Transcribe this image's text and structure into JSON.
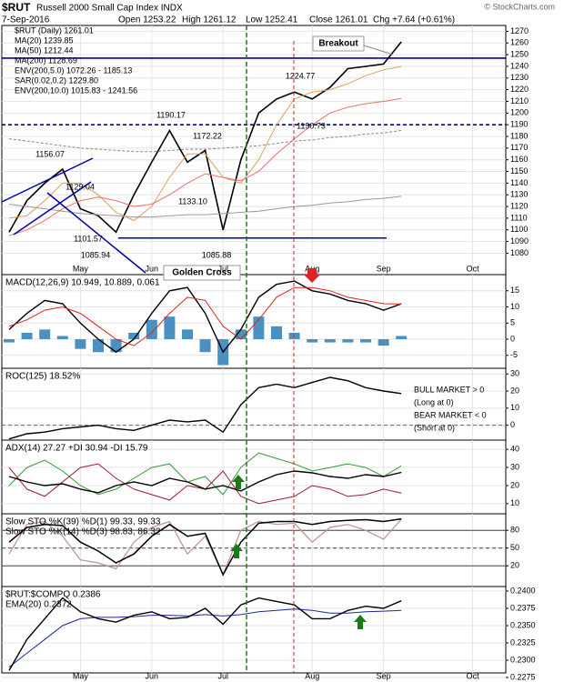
{
  "chart_data": {
    "type": "stock-panels",
    "title": "$RUT",
    "subtitle": "Russell 2000 Small Cap Index INDX",
    "date": "7-Sep-2016",
    "quote": [
      "Open 1253.22",
      "High 1261.12",
      "Low 1252.41",
      "Close 1261.01",
      "Chg +7.64 (+0.61%)"
    ],
    "watermark": "© StockCharts.com",
    "categories": [
      null,
      null,
      null,
      null,
      "May",
      null,
      null,
      null,
      "Jun",
      null,
      null,
      null,
      "Jul",
      null,
      null,
      null,
      null,
      "Aug",
      null,
      null,
      null,
      "Sep",
      null,
      null,
      null,
      null,
      "Oct",
      null
    ],
    "panels": [
      {
        "type": "price",
        "ylim": [
          1071,
          1275
        ],
        "grid": true,
        "yticks": [
          1080,
          1090,
          1100,
          1110,
          1120,
          1130,
          1140,
          1150,
          1160,
          1170,
          1180,
          1190,
          1200,
          1210,
          1220,
          1230,
          1240,
          1250,
          1260,
          1270
        ],
        "series": [
          {
            "name": "$RUT (Daily) 1261.01",
            "color": "#000000",
            "width": 1.6,
            "values": [
              1098,
              1125,
              1140,
              1152,
              1118,
              1112,
              1098,
              1130,
              1158,
              1185,
              1158,
              1168,
              1100,
              1160,
              1200,
              1212,
              1218,
              1212,
              1222,
              1238,
              1240,
              1242,
              1261.01
            ]
          },
          {
            "name": "MA(20) 1239.85",
            "color": "#d9a05b",
            "width": 1,
            "values": [
              1110,
              1112,
              1125,
              1140,
              1140,
              1130,
              1115,
              1108,
              1120,
              1145,
              1165,
              1165,
              1145,
              1140,
              1160,
              1190,
              1212,
              1218,
              1220,
              1225,
              1232,
              1237,
              1239.85
            ]
          },
          {
            "name": "MA(50) 1212.44",
            "color": "#e8706b",
            "width": 1,
            "values": [
              1095,
              1100,
              1108,
              1118,
              1125,
              1128,
              1125,
              1120,
              1122,
              1130,
              1140,
              1148,
              1145,
              1142,
              1150,
              1165,
              1178,
              1190,
              1200,
              1205,
              1208,
              1210,
              1212.44
            ]
          },
          {
            "name": "MA(200) 1128.69",
            "color": "#999999",
            "width": 1,
            "values": [
              1122,
              1120,
              1118,
              1116,
              1114,
              1113,
              1112,
              1111,
              1111,
              1112,
              1113,
              1113,
              1114,
              1115,
              1116,
              1118,
              1120,
              1121,
              1123,
              1124,
              1126,
              1127,
              1128.69
            ]
          },
          {
            "name": "ENV(200,5.0) 1072.26 - 1185.13",
            "color": "#888888",
            "width": 1,
            "dash": true,
            "values": [
              1178,
              1176,
              1174,
              1172,
              1170,
              1169,
              1168,
              1167,
              1167,
              1168,
              1169,
              1169,
              1170,
              1171,
              1172,
              1174,
              1176,
              1177,
              1179,
              1180,
              1182,
              1183,
              1185.13
            ]
          }
        ],
        "legend_extra": [
          "SAR(0.02,0.2) 1229.80",
          "ENV(200,10.0) 1015.83 - 1241.56"
        ],
        "hlines": [
          {
            "value": 1247,
            "color": "#0000aa",
            "dash": false
          },
          {
            "value": 1190,
            "color": "#0000aa",
            "dash": true
          },
          {
            "value": 1093,
            "color": "#0000aa",
            "dash": false
          }
        ],
        "annotations": [
          "1156.07",
          "1129.04",
          "1101.57",
          "1085.94",
          "1190.17",
          "1172.22",
          "1133.10",
          "1085.88",
          "1224.77",
          "1190.73",
          "Breakout",
          "Golden Cross"
        ]
      },
      {
        "type": "indicator",
        "label": [
          "MACD(12,26,9) 10.949, 10.889, 0.061"
        ],
        "ylim": [
          -9,
          20
        ],
        "grid": true,
        "yticks": [
          -5,
          0,
          5,
          10,
          15
        ],
        "series": [
          {
            "kind": "bar",
            "color": "#4a90c0",
            "values": [
              -1,
              2,
              3,
              1,
              -3,
              -4,
              -4,
              2,
              6,
              7,
              3,
              -4,
              -8,
              3,
              7,
              4,
              2,
              -1,
              -1,
              -1,
              -1,
              -2,
              1
            ]
          },
          {
            "color": "#000000",
            "width": 1.4,
            "values": [
              3,
              8,
              12,
              11,
              5,
              0,
              -4,
              0,
              8,
              15,
              16,
              8,
              -4,
              3,
              13,
              17,
              18,
              15,
              14,
              12,
              11,
              9,
              10.949
            ]
          },
          {
            "color": "#e02020",
            "width": 1,
            "values": [
              4,
              6,
              9,
              10,
              8,
              4,
              0,
              -2,
              2,
              8,
              13,
              12,
              4,
              0,
              6,
              13,
              16,
              16,
              15,
              13,
              12,
              11,
              10.889
            ]
          }
        ]
      },
      {
        "type": "indicator",
        "label": [
          "ROC(125) 18.52%"
        ],
        "ylim": [
          -8.7,
          33.3
        ],
        "grid": true,
        "yticks": [
          0,
          10,
          20,
          30
        ],
        "hlines": [
          {
            "value": 0,
            "color": "#666666",
            "dash": true
          }
        ],
        "notes": [
          {
            "text": "BULL MARKET > 0",
            "color": "#008000"
          },
          {
            "text": "(Long at 0)",
            "color": "#008000"
          },
          {
            "text": "BEAR MARKET < 0",
            "color": "#cc0000"
          },
          {
            "text": "(Short at 0)",
            "color": "#cc0000"
          }
        ],
        "series": [
          {
            "color": "#000000",
            "width": 1.4,
            "values": [
              -8,
              -5,
              -4,
              -2,
              -1,
              0,
              -2,
              -3,
              0,
              3,
              2,
              3,
              -4,
              12,
              22,
              24,
              22,
              25,
              28,
              26,
              22,
              20,
              18.52
            ]
          }
        ]
      },
      {
        "type": "indicator",
        "label": [
          "ADX(14) 27.27 +DI 30.94 -DI 15.79"
        ],
        "ylim": [
          4.4,
          45.1
        ],
        "grid": true,
        "yticks": [
          10,
          20,
          30,
          40
        ],
        "series": [
          {
            "color": "#3a9a3a",
            "width": 1,
            "values": [
              20,
              30,
              34,
              28,
              20,
              15,
              18,
              24,
              30,
              32,
              22,
              25,
              15,
              30,
              38,
              35,
              32,
              28,
              30,
              32,
              30,
              25,
              30.94
            ]
          },
          {
            "color": "#9a1a3a",
            "width": 1,
            "values": [
              30,
              18,
              14,
              22,
              30,
              32,
              24,
              18,
              15,
              12,
              20,
              18,
              28,
              14,
              10,
              12,
              14,
              20,
              18,
              14,
              15,
              18,
              15.79
            ]
          },
          {
            "color": "#000000",
            "width": 1.4,
            "values": [
              25,
              22,
              20,
              21,
              18,
              16,
              20,
              22,
              20,
              24,
              22,
              18,
              20,
              17,
              22,
              26,
              28,
              27,
              25,
              24,
              26,
              25,
              27.27
            ]
          }
        ]
      },
      {
        "type": "indicator",
        "label": [
          "Slow STO %K(39) %D(1) 99.33, 99.33",
          "Slow STO %K(14) %D(3) 98.83, 86.32"
        ],
        "ylim": [
          -15,
          108
        ],
        "grid": true,
        "yticks": [
          20,
          50,
          80
        ],
        "hlines": [
          {
            "value": 80,
            "color": "#444444",
            "dash": false
          },
          {
            "value": 50,
            "color": "#444444",
            "dash": true
          },
          {
            "value": 20,
            "color": "#444444",
            "dash": false
          }
        ],
        "series": [
          {
            "color": "#c09090",
            "width": 1.2,
            "values": [
              40,
              90,
              95,
              70,
              30,
              25,
              15,
              60,
              85,
              95,
              40,
              70,
              5,
              80,
              95,
              90,
              92,
              60,
              85,
              90,
              80,
              65,
              98.83
            ]
          },
          {
            "color": "#000000",
            "width": 1.5,
            "values": [
              60,
              85,
              90,
              88,
              60,
              45,
              25,
              40,
              70,
              90,
              70,
              75,
              5,
              60,
              92,
              95,
              95,
              90,
              95,
              97,
              98,
              95,
              99.33
            ]
          }
        ]
      },
      {
        "type": "indicator",
        "label": [
          "$RUT:$COMPQ 0.2386",
          "EMA(20) 0.2372"
        ],
        "ylim": [
          0.22816,
          0.24066
        ],
        "grid": true,
        "yticks": [
          {
            "value": 0.2275,
            "label": "0.2275"
          },
          {
            "value": 0.23,
            "label": "0.2300"
          },
          {
            "value": 0.2325,
            "label": "0.2325"
          },
          {
            "value": 0.235,
            "label": "0.2350"
          },
          {
            "value": 0.2375,
            "label": "0.2375"
          },
          {
            "value": 0.24,
            "label": "0.2400"
          }
        ],
        "series": [
          {
            "color": "#1a2a9a",
            "width": 1,
            "values": [
              0.229,
              0.231,
              0.233,
              0.235,
              0.236,
              0.2362,
              0.2362,
              0.2363,
              0.2365,
              0.2365,
              0.2364,
              0.2366,
              0.2364,
              0.2366,
              0.237,
              0.2372,
              0.2374,
              0.2372,
              0.2368,
              0.2368,
              0.237,
              0.2371,
              0.2372
            ]
          },
          {
            "color": "#000000",
            "width": 1.4,
            "values": [
              0.2285,
              0.233,
              0.236,
              0.239,
              0.237,
              0.236,
              0.2355,
              0.2365,
              0.237,
              0.236,
              0.2362,
              0.2375,
              0.2352,
              0.238,
              0.239,
              0.2385,
              0.238,
              0.236,
              0.236,
              0.2372,
              0.2378,
              0.2375,
              0.2386
            ]
          }
        ]
      }
    ]
  }
}
